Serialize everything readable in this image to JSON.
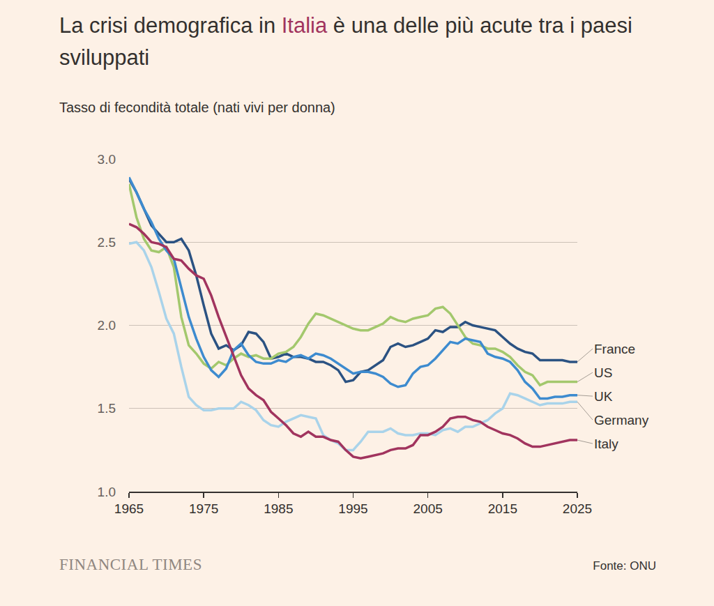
{
  "chart_data": {
    "type": "line",
    "title": "La crisi demografica in Italia è una delle più acute tra i paesi sviluppati",
    "title_highlight": "Italia",
    "subtitle": "Tasso di fecondità totale (nati vivi per donna)",
    "source": "Fonte: ONU",
    "publisher": "FINANCIAL TIMES",
    "x": [
      1965,
      1966,
      1967,
      1968,
      1969,
      1970,
      1971,
      1972,
      1973,
      1974,
      1975,
      1976,
      1977,
      1978,
      1979,
      1980,
      1981,
      1982,
      1983,
      1984,
      1985,
      1986,
      1987,
      1988,
      1989,
      1990,
      1991,
      1992,
      1993,
      1994,
      1995,
      1996,
      1997,
      1998,
      1999,
      2000,
      2001,
      2002,
      2003,
      2004,
      2005,
      2006,
      2007,
      2008,
      2009,
      2010,
      2011,
      2012,
      2013,
      2014,
      2015,
      2016,
      2017,
      2018,
      2019,
      2020,
      2021,
      2022,
      2023,
      2024,
      2025
    ],
    "xlim": [
      1965,
      2025
    ],
    "xticks": [
      1965,
      1975,
      1985,
      1995,
      2005,
      2015,
      2025
    ],
    "ylim": [
      1,
      3
    ],
    "yticks": [
      {
        "value": 1,
        "label": "1.0"
      },
      {
        "value": 1.5,
        "label": "1.5"
      },
      {
        "value": 2,
        "label": "2.0"
      },
      {
        "value": 2.5,
        "label": "2.5"
      },
      {
        "value": 3,
        "label": "3.0"
      }
    ],
    "grid": true,
    "series": [
      {
        "name": "France",
        "color": "#2b5282",
        "values": [
          2.88,
          2.8,
          2.7,
          2.6,
          2.55,
          2.5,
          2.5,
          2.52,
          2.45,
          2.3,
          2.12,
          1.95,
          1.86,
          1.88,
          1.85,
          1.88,
          1.96,
          1.95,
          1.9,
          1.8,
          1.81,
          1.83,
          1.81,
          1.81,
          1.8,
          1.78,
          1.78,
          1.76,
          1.73,
          1.66,
          1.67,
          1.72,
          1.73,
          1.76,
          1.79,
          1.87,
          1.89,
          1.87,
          1.88,
          1.9,
          1.92,
          1.97,
          1.96,
          1.99,
          1.99,
          2.02,
          2.0,
          1.99,
          1.98,
          1.97,
          1.93,
          1.89,
          1.86,
          1.84,
          1.83,
          1.79,
          1.79,
          1.79,
          1.79,
          1.78,
          1.78
        ]
      },
      {
        "name": "US",
        "color": "#a3c86d",
        "values": [
          2.85,
          2.65,
          2.52,
          2.45,
          2.44,
          2.47,
          2.35,
          2.05,
          1.88,
          1.83,
          1.77,
          1.74,
          1.78,
          1.76,
          1.8,
          1.83,
          1.81,
          1.82,
          1.8,
          1.8,
          1.83,
          1.84,
          1.87,
          1.93,
          2.01,
          2.07,
          2.06,
          2.04,
          2.02,
          2.0,
          1.98,
          1.97,
          1.97,
          1.99,
          2.01,
          2.05,
          2.03,
          2.02,
          2.04,
          2.05,
          2.06,
          2.1,
          2.11,
          2.07,
          2.0,
          1.93,
          1.89,
          1.88,
          1.86,
          1.86,
          1.84,
          1.81,
          1.76,
          1.72,
          1.7,
          1.64,
          1.66,
          1.66,
          1.66,
          1.66,
          1.66
        ]
      },
      {
        "name": "UK",
        "color": "#3d8bcf",
        "values": [
          2.89,
          2.8,
          2.7,
          2.62,
          2.52,
          2.45,
          2.4,
          2.22,
          2.05,
          1.92,
          1.81,
          1.73,
          1.69,
          1.74,
          1.85,
          1.89,
          1.82,
          1.78,
          1.77,
          1.77,
          1.79,
          1.78,
          1.81,
          1.82,
          1.8,
          1.83,
          1.82,
          1.8,
          1.77,
          1.74,
          1.71,
          1.72,
          1.72,
          1.71,
          1.69,
          1.65,
          1.63,
          1.64,
          1.71,
          1.75,
          1.76,
          1.8,
          1.85,
          1.9,
          1.89,
          1.92,
          1.91,
          1.9,
          1.83,
          1.81,
          1.8,
          1.78,
          1.73,
          1.66,
          1.62,
          1.56,
          1.56,
          1.57,
          1.57,
          1.58,
          1.58
        ]
      },
      {
        "name": "Germany",
        "color": "#a9d3ea",
        "values": [
          2.49,
          2.5,
          2.45,
          2.35,
          2.2,
          2.04,
          1.95,
          1.75,
          1.57,
          1.52,
          1.49,
          1.49,
          1.5,
          1.5,
          1.5,
          1.54,
          1.52,
          1.49,
          1.43,
          1.4,
          1.39,
          1.42,
          1.44,
          1.46,
          1.45,
          1.44,
          1.34,
          1.31,
          1.29,
          1.25,
          1.25,
          1.3,
          1.36,
          1.36,
          1.36,
          1.38,
          1.35,
          1.34,
          1.34,
          1.35,
          1.35,
          1.34,
          1.37,
          1.38,
          1.36,
          1.39,
          1.39,
          1.41,
          1.43,
          1.47,
          1.5,
          1.59,
          1.58,
          1.56,
          1.54,
          1.52,
          1.53,
          1.53,
          1.53,
          1.54,
          1.54
        ]
      },
      {
        "name": "Italy",
        "color": "#a1345e",
        "values": [
          2.61,
          2.59,
          2.55,
          2.5,
          2.49,
          2.47,
          2.4,
          2.39,
          2.34,
          2.3,
          2.28,
          2.18,
          2.05,
          1.93,
          1.82,
          1.7,
          1.62,
          1.58,
          1.55,
          1.48,
          1.44,
          1.4,
          1.35,
          1.33,
          1.36,
          1.33,
          1.33,
          1.31,
          1.3,
          1.25,
          1.21,
          1.2,
          1.21,
          1.22,
          1.23,
          1.25,
          1.26,
          1.26,
          1.28,
          1.34,
          1.34,
          1.36,
          1.39,
          1.44,
          1.45,
          1.45,
          1.43,
          1.42,
          1.39,
          1.37,
          1.35,
          1.34,
          1.32,
          1.29,
          1.27,
          1.27,
          1.28,
          1.29,
          1.3,
          1.31,
          1.31
        ]
      }
    ]
  }
}
